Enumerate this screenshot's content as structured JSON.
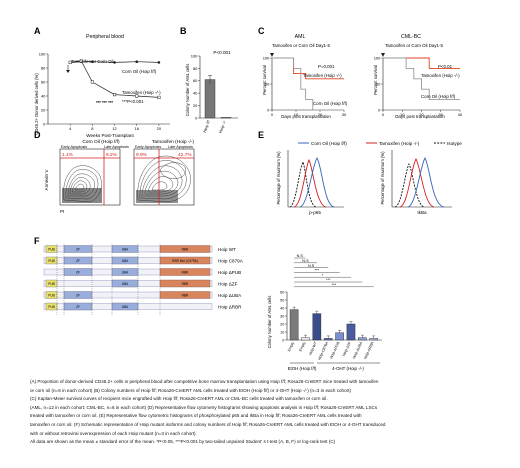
{
  "panels": {
    "A": {
      "letter": "A",
      "title": "Peripheral blood",
      "ylabel": "CD45.2+ Donor derived cells (%)",
      "xlabel": "Weeks Post-Transplant",
      "legend_tamox": "Tamoxifen or Corn Oil",
      "label_corn": "Corn Oil (Hoip f/f)",
      "label_tam": "Tamoxifen (Hoip -/-)",
      "stars": "*** *** ***",
      "pval": "***P<0.001"
    },
    "B": {
      "letter": "B",
      "ylabel": "Colony Number of AML cells",
      "pval": "P<0.001",
      "cat1": "Hoip f/f",
      "cat2": "Hoip -/-"
    },
    "C": {
      "letter": "C",
      "title_aml": "AML",
      "title_cml": "CML-BC",
      "tamox_aml": "Tamoxifen or Corn Oil Day1-5",
      "tamox_cml": "Tamoxifen or Corn Oil Day1-5",
      "ylabel": "Percent survival",
      "xlabel": "Days post transplantation",
      "p_aml": "P=0.001",
      "p_cml": "P<0.01",
      "tam_label": "Tamoxifen (Hoip -/-)",
      "corn_label": "Corn Oil (Hoip f/f)"
    },
    "D": {
      "letter": "D",
      "corn": "Corn Oil (Hoip f/f)",
      "tam": "Tamoxifen (Hoip -/-)",
      "early": "Early Apoptosis",
      "late": "Late Apoptosis",
      "c_early": "1.1%",
      "c_late": "6.2%",
      "t_early": "9.9%",
      "t_late": "42.7%",
      "ylabel": "Annexin V",
      "xlabel": "PI"
    },
    "E": {
      "letter": "E",
      "leg_corn": "Corn Oil (Hoip f/f)",
      "leg_tam": "Tamoxifen (Hoip -/-)",
      "leg_iso": "Isotype",
      "ylabel": "Percentage of maximum (%)",
      "x1": "p-p65",
      "x2": "IkBa"
    },
    "F": {
      "letter": "F",
      "constructs": [
        "Hoip WT",
        "Hoip C879A",
        "Hoip ΔPUB",
        "Hoip ΔZF",
        "Hoip ΔUBA",
        "Hoip ΔRBR"
      ],
      "domains": {
        "pub": "PUB",
        "zf": "ZF",
        "uba": "UBA",
        "rbr": "RBR",
        "rbr_mut": "RBR Mut (C879A)"
      },
      "ylabel": "Colony Number of AML cells",
      "group1": "EtOH (Hoip f/f)",
      "group2": "4-OHT (Hoip -/-)",
      "cats": [
        "Empty",
        "Empty",
        "Hoip-WT",
        "Hoip-C879A",
        "Hoip-ΔPUB",
        "Hoip-ΔZF",
        "Hoip-ΔUBA",
        "Hoip-ΔRBR"
      ],
      "sig": [
        "N.S",
        "N.S",
        "N.S",
        "***",
        "*",
        "***",
        "***"
      ]
    }
  },
  "chart_data": [
    {
      "panel": "A",
      "type": "line",
      "title": "Peripheral blood",
      "xlabel": "Weeks Post-Transplant",
      "ylabel": "CD45.2+ Donor derived cells (%)",
      "x": [
        4,
        6,
        8,
        12,
        16,
        20
      ],
      "series": [
        {
          "name": "Corn Oil (Hoip f/f)",
          "values": [
            88,
            90,
            89,
            88,
            89,
            88
          ]
        },
        {
          "name": "Tamoxifen (Hoip -/-)",
          "values": [
            88,
            90,
            60,
            42,
            40,
            38
          ]
        }
      ],
      "xlim": [
        0,
        22
      ],
      "ylim": [
        0,
        100
      ],
      "xticks": [
        4,
        8,
        12,
        16,
        20
      ],
      "yticks": [
        0,
        20,
        40,
        60,
        80,
        100
      ]
    },
    {
      "panel": "B",
      "type": "bar",
      "categories": [
        "Hoip f/f",
        "Hoip -/-"
      ],
      "values": [
        62,
        1
      ],
      "ylim": [
        0,
        100
      ],
      "yticks": [
        0,
        20,
        40,
        60,
        80,
        100
      ]
    },
    {
      "panel": "C-AML",
      "type": "line",
      "title": "AML",
      "xlabel": "Days post transplantation",
      "ylabel": "Percent survival",
      "series": [
        {
          "name": "Tamoxifen (Hoip -/-)",
          "x": [
            0,
            9,
            9,
            14,
            14,
            30
          ],
          "values": [
            100,
            100,
            70,
            70,
            60,
            60
          ]
        },
        {
          "name": "Corn Oil (Hoip f/f)",
          "x": [
            0,
            9,
            9,
            12,
            12,
            14,
            14,
            17,
            17,
            30
          ],
          "values": [
            100,
            100,
            80,
            80,
            40,
            40,
            20,
            20,
            0,
            0
          ]
        }
      ],
      "xlim": [
        0,
        30
      ],
      "ylim": [
        0,
        100
      ],
      "xticks": [
        0,
        10,
        20,
        30
      ],
      "yticks": [
        0,
        50,
        100
      ]
    },
    {
      "panel": "C-CML-BC",
      "type": "line",
      "title": "CML-BC",
      "xlabel": "Days post transplantation",
      "ylabel": "Percent survival",
      "series": [
        {
          "name": "Tamoxifen (Hoip -/-)",
          "x": [
            0,
            24,
            24,
            40
          ],
          "values": [
            100,
            100,
            80,
            80
          ]
        },
        {
          "name": "Corn Oil (Hoip f/f)",
          "x": [
            0,
            12,
            12,
            16,
            16,
            20,
            20,
            24,
            24,
            40
          ],
          "values": [
            100,
            100,
            80,
            80,
            60,
            60,
            40,
            40,
            20,
            20
          ]
        }
      ],
      "xlim": [
        0,
        40
      ],
      "ylim": [
        0,
        100
      ],
      "xticks": [
        0,
        10,
        20,
        30,
        40
      ],
      "yticks": [
        0,
        50,
        100
      ]
    },
    {
      "panel": "F",
      "type": "bar",
      "categories": [
        "Empty",
        "Empty",
        "Hoip-WT",
        "Hoip-C879A",
        "Hoip-ΔPUB",
        "Hoip-ΔZF",
        "Hoip-ΔUBA",
        "Hoip-ΔRBR"
      ],
      "values": [
        38,
        3,
        33,
        2,
        9,
        20,
        3,
        2
      ],
      "ylim": [
        0,
        60
      ],
      "yticks": [
        0,
        10,
        20,
        30,
        40,
        50,
        60
      ]
    }
  ],
  "caption": {
    "p1": "(A) Proportion of donor-derived CD45.2+ cells in peripheral blood after competitive bone marrow transplantation using Hoip f/f; Rosa26-CreERT mice treated with tamoxifen",
    "p2": "or corn oil (n=6 in each cohort) (B) Colony numbers of Hoip f/f; Rosa26-CreERT AML cells treated with EtOH (Hoip f/f) or 4-OHT (Hoip -/-) (n=3 in each cohort)",
    "p3": "(C) Kaplan-Meier survival curves of recipient mice engrafted with Hoip f/f; Rosa26-CreERT AML or CML-BC cells treated with tamoxifen or corn oil.",
    "p4": "(AML, n=12 in each cohort; CML-BC, n=6 in each cohort) (D) Representative flow cytometry histograms showing apoptosis analysis in Hoip f/f; Rosa26-CreERT AML LSCs",
    "p5": "treated with tamoxifen or corn oil. (E) Representative flow cytometric histograms of phosphorylated p65 and IkBa in Hoip f/f; Rosa26-CreERT AML cells treated with",
    "p6": "tamoxifen or corn oil. (F) Schematic representation of Hoip mutant isoforms and colony numbers of Hoip f/f; Rosa26-CreERT AML cells treated with EtOH or 4-OHT transduced",
    "p7": "with or without retroviral overexpression of each Hoip mutant (n=3 in each cohort)",
    "p8": "All data are shown as the mean ± standard error of the mean. *P<0.05, ***P<0.001 by two-tailed unpaired Student' s t-test (A, B, F) or log-rank test (C)"
  }
}
